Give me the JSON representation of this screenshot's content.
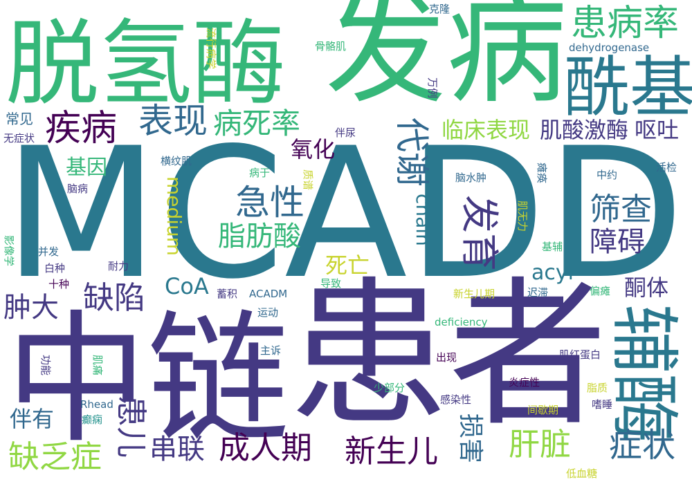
{
  "palette": {
    "purple_dark": "#440154",
    "indigo": "#443983",
    "blue": "#31688e",
    "teal": "#21918c",
    "green": "#35b779",
    "lime": "#90d743",
    "yellow": "#c8d32e"
  },
  "words": [
    {
      "text": "MCADD",
      "color": "#2a788e",
      "vertical": false
    },
    {
      "text": "中链",
      "color": "#443983",
      "vertical": false
    },
    {
      "text": "患者",
      "color": "#443983",
      "vertical": false
    },
    {
      "text": "发病",
      "color": "#35b779",
      "vertical": false
    },
    {
      "text": "脱氢酶",
      "color": "#35b779",
      "vertical": false
    },
    {
      "text": "酰基",
      "color": "#2a788e",
      "vertical": false
    },
    {
      "text": "辅酶",
      "color": "#2a788e",
      "vertical": true
    },
    {
      "text": "患病率",
      "color": "#35b779",
      "vertical": false
    },
    {
      "text": "疾病",
      "color": "#440154",
      "vertical": false
    },
    {
      "text": "表现",
      "color": "#31688e",
      "vertical": false
    },
    {
      "text": "病死率",
      "color": "#35b779",
      "vertical": false
    },
    {
      "text": "代谢",
      "color": "#31688e",
      "vertical": true
    },
    {
      "text": "临床表现",
      "color": "#90d743",
      "vertical": false
    },
    {
      "text": "肌酸激酶",
      "color": "#443983",
      "vertical": false
    },
    {
      "text": "呕吐",
      "color": "#443983",
      "vertical": false
    },
    {
      "text": "急性",
      "color": "#31688e",
      "vertical": false
    },
    {
      "text": "筛查",
      "color": "#31688e",
      "vertical": false
    },
    {
      "text": "脂肪酸",
      "color": "#35b779",
      "vertical": false
    },
    {
      "text": "障碍",
      "color": "#443983",
      "vertical": false
    },
    {
      "text": "发育",
      "color": "#443983",
      "vertical": true
    },
    {
      "text": "氧化",
      "color": "#440154",
      "vertical": false
    },
    {
      "text": "基因",
      "color": "#35b779",
      "vertical": false
    },
    {
      "text": "medium",
      "color": "#c8d32e",
      "vertical": true
    },
    {
      "text": "chain",
      "color": "#2a788e",
      "vertical": true
    },
    {
      "text": "acyl",
      "color": "#2a788e",
      "vertical": false
    },
    {
      "text": "CoA",
      "color": "#2a788e",
      "vertical": false
    },
    {
      "text": "缺陷",
      "color": "#443983",
      "vertical": false
    },
    {
      "text": "死亡",
      "color": "#c8d32e",
      "vertical": false
    },
    {
      "text": "肿大",
      "color": "#443983",
      "vertical": false
    },
    {
      "text": "酮体",
      "color": "#443983",
      "vertical": false
    },
    {
      "text": "常见",
      "color": "#31688e",
      "vertical": false
    },
    {
      "text": "无症状",
      "color": "#443983",
      "vertical": false
    },
    {
      "text": "横纹肌",
      "color": "#31688e",
      "vertical": false
    },
    {
      "text": "脑病",
      "color": "#443983",
      "vertical": false
    },
    {
      "text": "伴尿",
      "color": "#443983",
      "vertical": false
    },
    {
      "text": "dehydrogenase",
      "color": "#31688e",
      "vertical": false
    },
    {
      "text": "克隆",
      "color": "#31688e",
      "vertical": false
    },
    {
      "text": "骨骼肌",
      "color": "#35b779",
      "vertical": false
    },
    {
      "text": "流行病学",
      "color": "#c8d32e",
      "vertical": true
    },
    {
      "text": "万例",
      "color": "#443983",
      "vertical": true
    },
    {
      "text": "脑水肿",
      "color": "#31688e",
      "vertical": false
    },
    {
      "text": "肌无力",
      "color": "#c8d32e",
      "vertical": true
    },
    {
      "text": "中约",
      "color": "#31688e",
      "vertical": false
    },
    {
      "text": "活检",
      "color": "#31688e",
      "vertical": false
    },
    {
      "text": "瘫痪",
      "color": "#31688e",
      "vertical": true
    },
    {
      "text": "病于",
      "color": "#35b779",
      "vertical": false
    },
    {
      "text": "质谱",
      "color": "#c8d32e",
      "vertical": true
    },
    {
      "text": "基辅",
      "color": "#35b779",
      "vertical": false
    },
    {
      "text": "影像学",
      "color": "#35b779",
      "vertical": true
    },
    {
      "text": "并发",
      "color": "#31688e",
      "vertical": false
    },
    {
      "text": "白种",
      "color": "#443983",
      "vertical": false
    },
    {
      "text": "耐力",
      "color": "#443983",
      "vertical": false
    },
    {
      "text": "十种",
      "color": "#440154",
      "vertical": false
    },
    {
      "text": "蓄积",
      "color": "#443983",
      "vertical": false
    },
    {
      "text": "ACADM",
      "color": "#31688e",
      "vertical": false
    },
    {
      "text": "导致",
      "color": "#35b779",
      "vertical": false
    },
    {
      "text": "新生儿期",
      "color": "#c8d32e",
      "vertical": false
    },
    {
      "text": "迟滞",
      "color": "#31688e",
      "vertical": false
    },
    {
      "text": "偏瘫",
      "color": "#35b779",
      "vertical": false
    },
    {
      "text": "运动",
      "color": "#31688e",
      "vertical": false
    },
    {
      "text": "deficiency",
      "color": "#35b779",
      "vertical": false
    },
    {
      "text": "主诉",
      "color": "#31688e",
      "vertical": false
    },
    {
      "text": "功能",
      "color": "#443983",
      "vertical": true
    },
    {
      "text": "肌痛",
      "color": "#35b779",
      "vertical": true
    },
    {
      "text": "出现",
      "color": "#440154",
      "vertical": false
    },
    {
      "text": "肌红蛋白",
      "color": "#443983",
      "vertical": false
    },
    {
      "text": "炎症性",
      "color": "#440154",
      "vertical": false
    },
    {
      "text": "少部分",
      "color": "#35b779",
      "vertical": false
    },
    {
      "text": "感染性",
      "color": "#443983",
      "vertical": false
    },
    {
      "text": "脂质",
      "color": "#c8d32e",
      "vertical": false
    },
    {
      "text": "嗜睡",
      "color": "#443983",
      "vertical": false
    },
    {
      "text": "Rhead",
      "color": "#31688e",
      "vertical": false
    },
    {
      "text": "癫痫",
      "color": "#21918c",
      "vertical": false
    },
    {
      "text": "间歇期",
      "color": "#c8d32e",
      "vertical": false
    },
    {
      "text": "伴有",
      "color": "#31688e",
      "vertical": false
    },
    {
      "text": "患儿",
      "color": "#443983",
      "vertical": true
    },
    {
      "text": "串联",
      "color": "#443983",
      "vertical": false
    },
    {
      "text": "成人期",
      "color": "#440154",
      "vertical": false
    },
    {
      "text": "新生儿",
      "color": "#440154",
      "vertical": false
    },
    {
      "text": "损害",
      "color": "#31688e",
      "vertical": true
    },
    {
      "text": "肝脏",
      "color": "#90d743",
      "vertical": false
    },
    {
      "text": "症状",
      "color": "#31688e",
      "vertical": false
    },
    {
      "text": "缺乏症",
      "color": "#90d743",
      "vertical": false
    },
    {
      "text": "低血糖",
      "color": "#c8d32e",
      "vertical": false
    }
  ]
}
